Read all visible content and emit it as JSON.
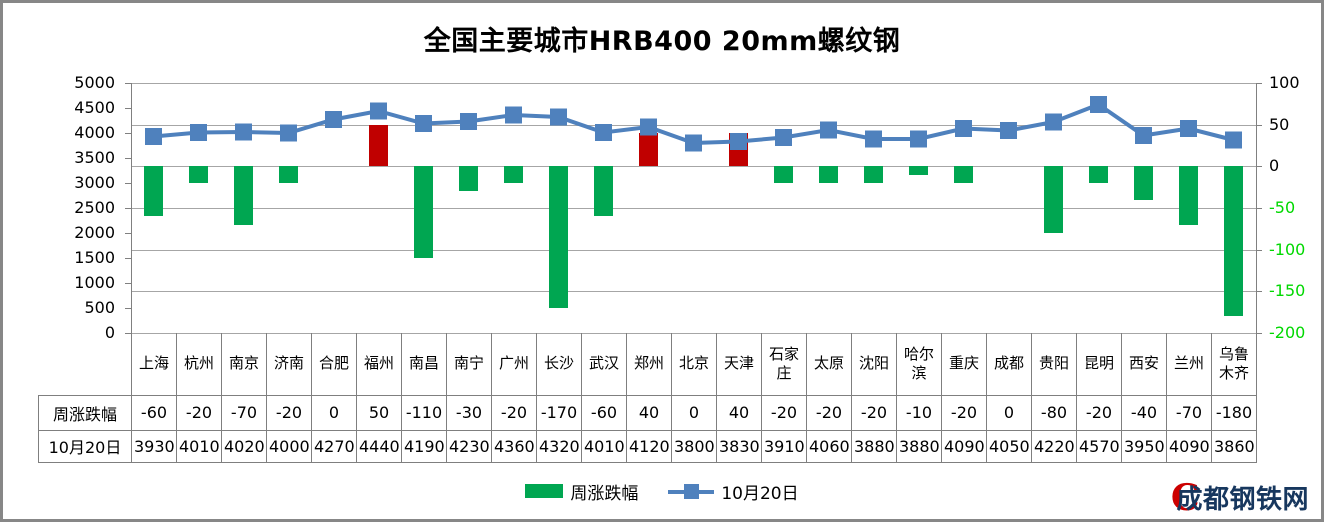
{
  "title": "全国主要城市HRB400 20mm螺纹钢",
  "chart_data": {
    "type": "bar",
    "combo": "bar-line",
    "title": "全国主要城市HRB400 20mm螺纹钢",
    "categories": [
      "上海",
      "杭州",
      "南京",
      "济南",
      "合肥",
      "福州",
      "南昌",
      "南宁",
      "广州",
      "长沙",
      "武汉",
      "郑州",
      "北京",
      "天津",
      "石家庄",
      "太原",
      "沈阳",
      "哈尔滨",
      "重庆",
      "成都",
      "贵阳",
      "昆明",
      "西安",
      "兰州",
      "乌鲁木齐"
    ],
    "series": [
      {
        "name": "周涨跌幅",
        "type": "bar",
        "axis": "right",
        "values": [
          -60,
          -20,
          -70,
          -20,
          0,
          50,
          -110,
          -30,
          -20,
          -170,
          -60,
          40,
          0,
          40,
          -20,
          -20,
          -20,
          -10,
          -20,
          0,
          -80,
          -20,
          -40,
          -70,
          -180
        ],
        "negative_color": "#00A651",
        "positive_color": "#C00000"
      },
      {
        "name": "10月20日",
        "type": "line",
        "axis": "left",
        "values": [
          3930,
          4010,
          4020,
          4000,
          4270,
          4440,
          4190,
          4230,
          4360,
          4320,
          4010,
          4120,
          3800,
          3830,
          3910,
          4060,
          3880,
          3880,
          4090,
          4050,
          4220,
          4570,
          3950,
          4090,
          3860
        ],
        "color": "#4F81BD",
        "marker": "square"
      }
    ],
    "left_axis": {
      "min": 0,
      "max": 5000,
      "step": 500
    },
    "right_axis": {
      "min": -200,
      "max": 100,
      "step": 50,
      "negative_label_color": "#00D800",
      "positive_label_color": "#000000"
    },
    "gridlines": "horizontal",
    "legend_position": "bottom",
    "has_data_table": true
  },
  "table": {
    "row_headers": [
      "周涨跌幅",
      "10月20日"
    ]
  },
  "legend": {
    "items": [
      {
        "label": "周涨跌幅",
        "type": "bar",
        "color": "#00A651"
      },
      {
        "label": "10月20日",
        "type": "line",
        "color": "#4F81BD"
      }
    ]
  },
  "watermark": {
    "logo_letter": "C",
    "text": "成都钢铁网",
    "text_color": "#17375E",
    "logo_color": "#CC0000"
  },
  "colors": {
    "gridline": "#A6A6A6",
    "axis_line": "#808080",
    "table_border": "#7F7F7F",
    "background": "#FFFFFF"
  }
}
